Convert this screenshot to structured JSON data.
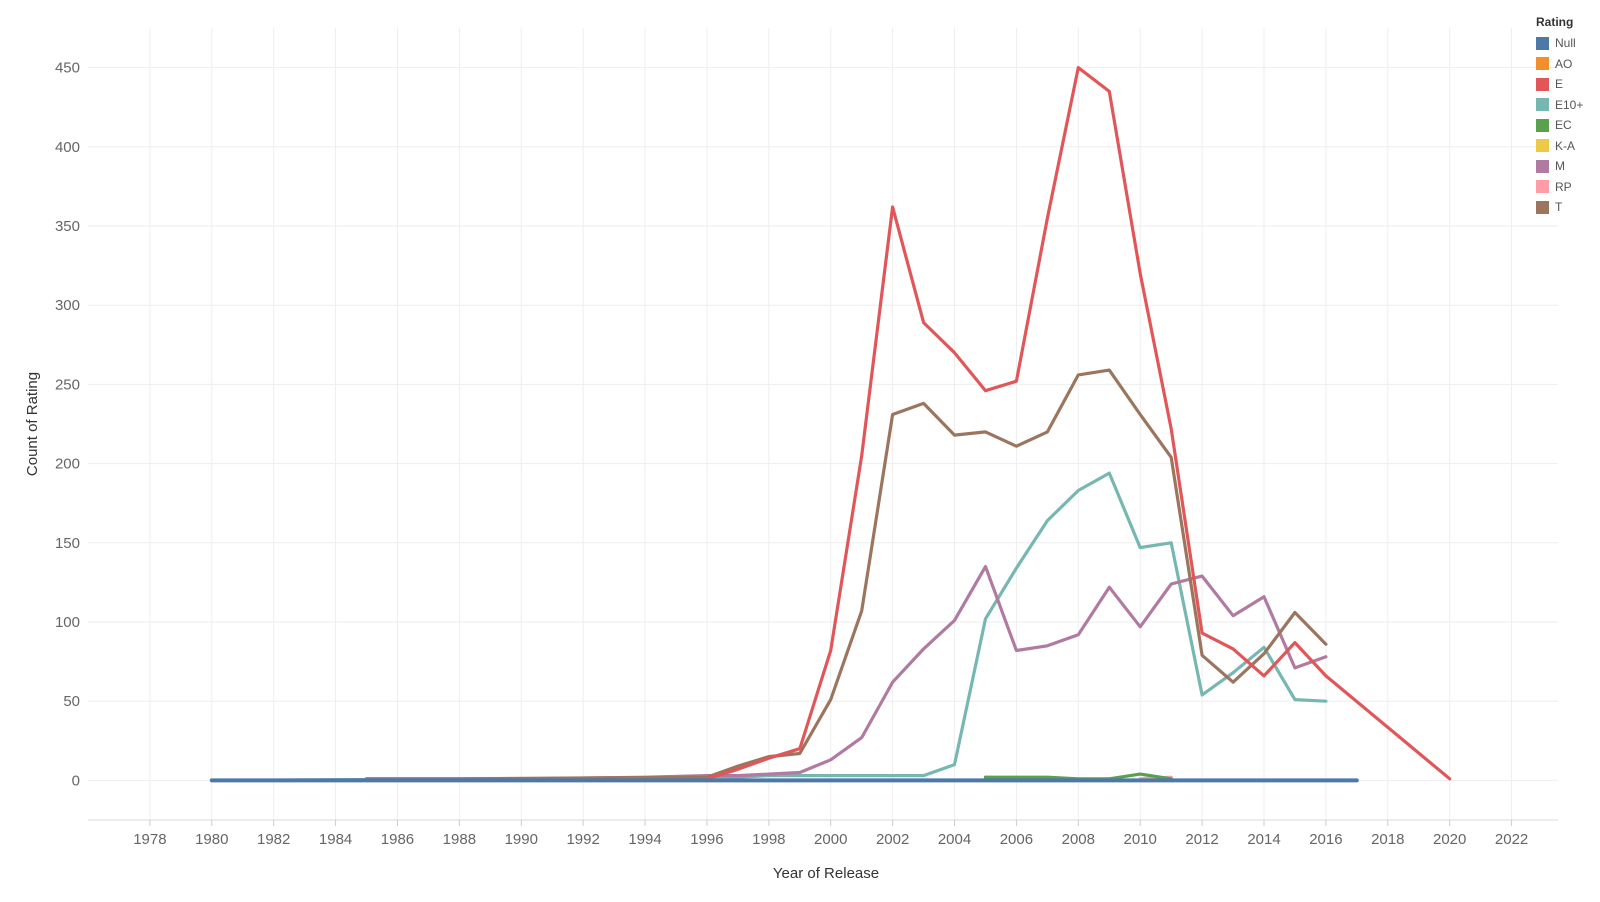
{
  "chart_data": {
    "type": "line",
    "xlabel": "Year of Release",
    "ylabel": "Count of Rating",
    "xlim": [
      1976,
      2023.5
    ],
    "ylim": [
      -25,
      475
    ],
    "x_ticks": [
      1978,
      1980,
      1982,
      1984,
      1986,
      1988,
      1990,
      1992,
      1994,
      1996,
      1998,
      2000,
      2002,
      2004,
      2006,
      2008,
      2010,
      2012,
      2014,
      2016,
      2018,
      2020,
      2022
    ],
    "y_ticks": [
      0,
      50,
      100,
      150,
      200,
      250,
      300,
      350,
      400,
      450
    ],
    "grid": true,
    "legend": {
      "title": "Rating",
      "placement": "top-right",
      "entries": [
        "Null",
        "AO",
        "E",
        "E10+",
        "EC",
        "K-A",
        "M",
        "RP",
        "T"
      ]
    },
    "series": [
      {
        "name": "Null",
        "color": "#4e79a7",
        "x": [
          1980,
          1985,
          1990,
          1995,
          2000,
          2005,
          2010,
          2015,
          2017
        ],
        "y": [
          0,
          0,
          0,
          0,
          0,
          0,
          0,
          0,
          0
        ]
      },
      {
        "name": "AO",
        "color": "#f28e2b",
        "x": [
          2005,
          2006
        ],
        "y": [
          2,
          1
        ]
      },
      {
        "name": "E",
        "color": "#e15759",
        "x": [
          1996,
          1997,
          1998,
          1999,
          2000,
          2001,
          2002,
          2003,
          2004,
          2005,
          2006,
          2007,
          2008,
          2009,
          2010,
          2011,
          2012,
          2013,
          2014,
          2015,
          2016,
          2020
        ],
        "y": [
          1,
          7,
          14,
          20,
          82,
          205,
          362,
          289,
          270,
          246,
          252,
          355,
          450,
          435,
          320,
          222,
          93,
          83,
          66,
          87,
          66,
          1
        ]
      },
      {
        "name": "E10+",
        "color": "#76b7b2",
        "x": [
          1980,
          1990,
          1995,
          1996,
          1997,
          1998,
          1999,
          2000,
          2001,
          2002,
          2003,
          2004,
          2005,
          2006,
          2007,
          2008,
          2009,
          2010,
          2011,
          2012,
          2013,
          2014,
          2015,
          2016
        ],
        "y": [
          0,
          1,
          1,
          1,
          2,
          3,
          3,
          3,
          3,
          3,
          3,
          10,
          102,
          134,
          164,
          183,
          194,
          147,
          150,
          54,
          68,
          84,
          51,
          50
        ]
      },
      {
        "name": "EC",
        "color": "#59a14f",
        "x": [
          2005,
          2006,
          2007,
          2008,
          2009,
          2010,
          2011
        ],
        "y": [
          2,
          2,
          2,
          1,
          1,
          4,
          1
        ]
      },
      {
        "name": "K-A",
        "color": "#edc948",
        "x": [
          1995,
          1996
        ],
        "y": [
          0,
          0
        ]
      },
      {
        "name": "M",
        "color": "#b07aa1",
        "x": [
          1985,
          1990,
          1994,
          1996,
          1997,
          1998,
          1999,
          2000,
          2001,
          2002,
          2003,
          2004,
          2005,
          2006,
          2007,
          2008,
          2009,
          2010,
          2011,
          2012,
          2013,
          2014,
          2015,
          2016
        ],
        "y": [
          1,
          1,
          2,
          3,
          3,
          4,
          5,
          13,
          27,
          62,
          83,
          101,
          135,
          82,
          85,
          92,
          122,
          97,
          124,
          129,
          104,
          116,
          71,
          78
        ]
      },
      {
        "name": "RP",
        "color": "#ff9da7",
        "x": [
          2010,
          2011
        ],
        "y": [
          1,
          2
        ]
      },
      {
        "name": "T",
        "color": "#9c755f",
        "x": [
          1985,
          1988,
          1996,
          1997,
          1998,
          1999,
          2000,
          2001,
          2002,
          2003,
          2004,
          2005,
          2006,
          2007,
          2008,
          2009,
          2010,
          2011,
          2012,
          2013,
          2014,
          2015,
          2016
        ],
        "y": [
          1,
          1,
          2,
          9,
          15,
          17,
          51,
          107,
          231,
          238,
          218,
          220,
          211,
          220,
          256,
          259,
          231,
          204,
          79,
          62,
          80,
          106,
          86
        ]
      }
    ]
  }
}
